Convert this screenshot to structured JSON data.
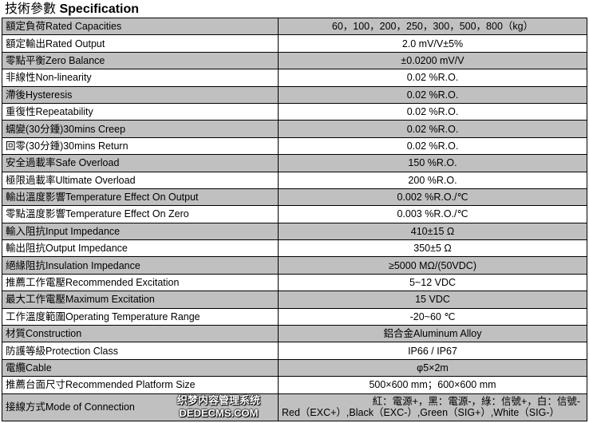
{
  "title": {
    "zh": "技術參數",
    "en": "Specification"
  },
  "rows": [
    {
      "label": "額定負荷Rated Capacities",
      "value": "60，100，200，250，300，500，800（kg）"
    },
    {
      "label": "額定輸出Rated Output",
      "value": "2.0 mV/V±5%"
    },
    {
      "label": "零點平衡Zero Balance",
      "value": "±0.0200 mV/V"
    },
    {
      "label": "非線性Non-linearity",
      "value": "0.02 %R.O."
    },
    {
      "label": "滯後Hysteresis",
      "value": "0.02 %R.O."
    },
    {
      "label": "重復性Repeatability",
      "value": "0.02 %R.O."
    },
    {
      "label": "蠕變(30分鍾)30mins Creep",
      "value": "0.02 %R.O."
    },
    {
      "label": "回零(30分鍾)30mins Return",
      "value": "0.02 %R.O."
    },
    {
      "label": "安全過載率Safe Overload",
      "value": "150 %R.O."
    },
    {
      "label": "極限過載率Ultimate Overload",
      "value": "200 %R.O."
    },
    {
      "label": "輸出溫度影響Temperature Effect On Output",
      "value": "0.002 %R.O./℃"
    },
    {
      "label": "零點溫度影響Temperature Effect On Zero",
      "value": "0.003 %R.O./℃"
    },
    {
      "label": "輸入阻抗Input Impedance",
      "value": "410±15 Ω"
    },
    {
      "label": "輸出阻抗Output Impedance",
      "value": "350±5 Ω"
    },
    {
      "label": "絕緣阻抗Insulation Impedance",
      "value": "≥5000 MΩ/(50VDC)"
    },
    {
      "label": "推薦工作電壓Recommended Excitation",
      "value": "5~12 VDC"
    },
    {
      "label": "最大工作電壓Maximum Excitation",
      "value": "15 VDC"
    },
    {
      "label": "工作溫度範圍Operating Temperature Range",
      "value": "-20~60 ℃"
    },
    {
      "label": "材質Construction",
      "value": "鋁合金Aluminum Alloy"
    },
    {
      "label": "防護等級Protection Class",
      "value": "IP66 / IP67"
    },
    {
      "label": "電纜Cable",
      "value": "φ5×2m"
    },
    {
      "label": "推薦台面尺寸Recommended Platform Size",
      "value": "500×600 mm；600×600 mm"
    }
  ],
  "connection": {
    "label": "接線方式Mode of Connection",
    "line1": "紅：電源+，黑：電源-，綠：信號+，白：信號-",
    "line2": "Red（EXC+）,Black（EXC-）,Green（SIG+）,White（SIG-）"
  },
  "watermark": {
    "line1": "织梦内容管理系统",
    "line2": "DEDECMS.COM"
  }
}
